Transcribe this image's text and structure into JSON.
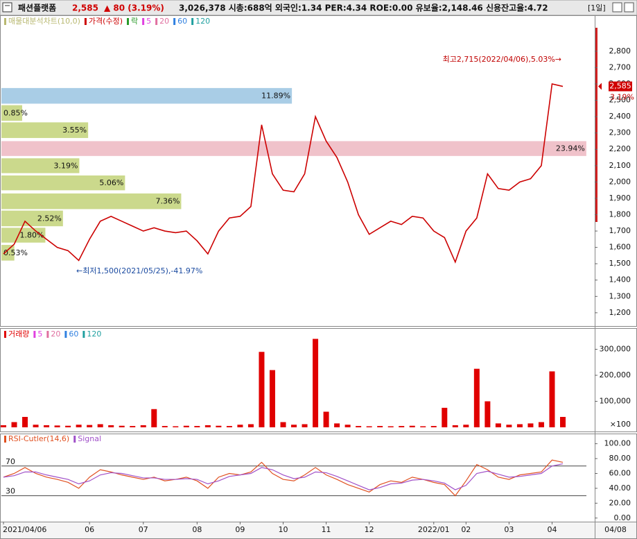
{
  "header": {
    "name": "패션플랫폼",
    "price": "2,585",
    "change": "▲ 80 (3.19%)",
    "info": "3,026,378  시총:688억  외국인:1.34  PER:4.34  ROE:0.00  유보율:2,148.46  신용잔고율:4.72",
    "period": "[1일]"
  },
  "chart_data": [
    {
      "type": "line",
      "legend_title": "매물대분석차트(10,0)",
      "legend_title_color": "#b8b870",
      "series": [
        {
          "name": "가격(수정)",
          "color": "#cc0000",
          "values": [
            1560,
            1620,
            1760,
            1700,
            1650,
            1600,
            1580,
            1520,
            1650,
            1760,
            1790,
            1760,
            1730,
            1700,
            1720,
            1700,
            1690,
            1700,
            1640,
            1560,
            1700,
            1780,
            1790,
            1850,
            2350,
            2050,
            1950,
            1940,
            2050,
            2400,
            2250,
            2150,
            2000,
            1800,
            1680,
            1720,
            1760,
            1740,
            1790,
            1780,
            1700,
            1660,
            1510,
            1700,
            1780,
            2050,
            1960,
            1950,
            2000,
            2020,
            2100,
            2600,
            2585
          ]
        }
      ],
      "legend_items": [
        {
          "text": "락",
          "color": "#2a9a2a"
        },
        {
          "text": "5",
          "color": "#e040e0"
        },
        {
          "text": "20",
          "color": "#e070a0"
        },
        {
          "text": "60",
          "color": "#3080e0"
        },
        {
          "text": "120",
          "color": "#20a0a0"
        }
      ],
      "profile": {
        "lows": [
          2475,
          2370,
          2265,
          2155,
          2050,
          1945,
          1830,
          1725,
          1625,
          1515
        ],
        "highs": [
          2575,
          2470,
          2365,
          2250,
          2145,
          2040,
          1930,
          1825,
          1720,
          1615
        ],
        "values": [
          11.89,
          0.85,
          3.55,
          23.94,
          3.19,
          5.06,
          7.36,
          2.52,
          1.8,
          0.53
        ],
        "value_labels": [
          "11.89%",
          "0.85%",
          "3.55%",
          "23.94%",
          "3.19%",
          "5.06%",
          "7.36%",
          "2.52%",
          "1.80%",
          "0.53%"
        ],
        "colors": [
          "#a9cde6",
          "#cbd98c",
          "#cbd98c",
          "#f0c2ca",
          "#cbd98c",
          "#cbd98c",
          "#cbd98c",
          "#cbd98c",
          "#cbd98c",
          "#cbd98c"
        ],
        "xlim": [
          0,
          24
        ]
      },
      "annotations": [
        "최고2,715(2022/04/06),5.03%→",
        "←최저1,500(2021/05/25),-41.97%"
      ],
      "current_value": 2585,
      "current_label": "2,585",
      "current_change_label": "3.19%",
      "ylim": [
        1140,
        2965
      ],
      "yticks": [
        {
          "value": 1200,
          "label": "1,200"
        },
        {
          "value": 1300,
          "label": "1,300"
        },
        {
          "value": 1400,
          "label": "1,400"
        },
        {
          "value": 1500,
          "label": "1,500"
        },
        {
          "value": 1600,
          "label": "1,600"
        },
        {
          "value": 1700,
          "label": "1,700"
        },
        {
          "value": 1800,
          "label": "1,800"
        },
        {
          "value": 1900,
          "label": "1,900"
        },
        {
          "value": 2000,
          "label": "2,000"
        },
        {
          "value": 2100,
          "label": "2,100"
        },
        {
          "value": 2200,
          "label": "2,200"
        },
        {
          "value": 2300,
          "label": "2,300"
        },
        {
          "value": 2400,
          "label": "2,400"
        },
        {
          "value": 2500,
          "label": "2,500"
        },
        {
          "value": 2600,
          "label": "2,600"
        },
        {
          "value": 2700,
          "label": "2,700"
        },
        {
          "value": 2800,
          "label": "2,800"
        }
      ]
    },
    {
      "type": "bar",
      "series": [
        {
          "name": "거래량",
          "color": "#e00000",
          "values": [
            8000,
            20000,
            40000,
            10000,
            8000,
            7000,
            6000,
            10000,
            9000,
            12000,
            8000,
            6000,
            5000,
            8000,
            70000,
            5000,
            4000,
            6000,
            5000,
            8000,
            6000,
            5000,
            10000,
            12000,
            290000,
            220000,
            20000,
            10000,
            12000,
            340000,
            60000,
            15000,
            10000,
            5000,
            4000,
            5000,
            4000,
            5000,
            6000,
            4000,
            5000,
            75000,
            8000,
            10000,
            225000,
            100000,
            15000,
            10000,
            12000,
            15000,
            20000,
            215000,
            40000
          ]
        }
      ],
      "legend_items": [
        {
          "text": "5",
          "color": "#e040e0"
        },
        {
          "text": "20",
          "color": "#e070a0"
        },
        {
          "text": "60",
          "color": "#3080e0"
        },
        {
          "text": "120",
          "color": "#20a0a0"
        }
      ],
      "unit_label": "×100",
      "ylim": [
        0,
        368000
      ],
      "yticks": [
        {
          "value": 100000,
          "label": "100,000"
        },
        {
          "value": 200000,
          "label": "200,000"
        },
        {
          "value": 300000,
          "label": "300,000"
        }
      ]
    },
    {
      "type": "line",
      "series": [
        {
          "name": "RSI-Cutler(14,6)",
          "color": "#e05020",
          "values": [
            55,
            60,
            68,
            60,
            55,
            52,
            48,
            40,
            55,
            65,
            62,
            58,
            55,
            52,
            55,
            50,
            52,
            55,
            50,
            40,
            55,
            60,
            58,
            62,
            75,
            60,
            52,
            50,
            58,
            68,
            58,
            52,
            45,
            40,
            35,
            45,
            50,
            48,
            55,
            52,
            48,
            45,
            30,
            50,
            72,
            65,
            55,
            52,
            58,
            60,
            62,
            78,
            75
          ]
        },
        {
          "name": "Signal",
          "color": "#a050c8",
          "values": [
            55,
            57,
            62,
            62,
            58,
            55,
            52,
            46,
            50,
            58,
            61,
            60,
            57,
            54,
            54,
            52,
            52,
            53,
            52,
            46,
            50,
            56,
            58,
            60,
            68,
            65,
            58,
            53,
            55,
            62,
            61,
            56,
            50,
            44,
            38,
            41,
            46,
            47,
            51,
            52,
            50,
            47,
            38,
            44,
            60,
            63,
            59,
            55,
            56,
            58,
            60,
            70,
            73
          ]
        }
      ],
      "hlines": [
        70,
        30
      ],
      "ylim": [
        -3,
        109
      ],
      "yticks": [
        {
          "value": 0,
          "label": "0.00"
        },
        {
          "value": 20,
          "label": "20.00"
        },
        {
          "value": 40,
          "label": "40.00"
        },
        {
          "value": 60,
          "label": "60.00"
        },
        {
          "value": 80,
          "label": "80.00"
        },
        {
          "value": 100,
          "label": "100.00"
        }
      ],
      "categories": [
        "2021/04/06",
        null,
        null,
        null,
        null,
        null,
        null,
        null,
        "06",
        null,
        null,
        null,
        null,
        "07",
        null,
        null,
        null,
        null,
        "08",
        null,
        null,
        null,
        "09",
        null,
        null,
        null,
        "10",
        null,
        null,
        null,
        "11",
        null,
        null,
        null,
        "12",
        null,
        null,
        null,
        null,
        null,
        "2022/01",
        null,
        null,
        "02",
        null,
        null,
        null,
        "03",
        null,
        null,
        null,
        "04",
        null
      ],
      "x_end_label": "04/08"
    }
  ]
}
